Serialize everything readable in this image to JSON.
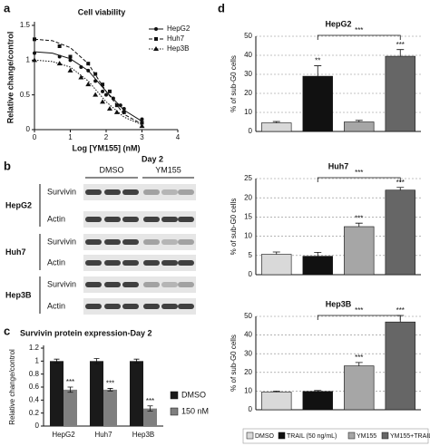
{
  "panel_labels": [
    "a",
    "b",
    "c",
    "d"
  ],
  "chart_data": [
    {
      "type": "scatter",
      "title": "Cell viability",
      "x_label": "Log [YM155] (nM)",
      "y_label": "Relative change/control",
      "xlim": [
        0,
        4
      ],
      "xticks": [
        0,
        1,
        2,
        3,
        4
      ],
      "ylim": [
        0,
        1.5
      ],
      "yticks": [
        0,
        0.5,
        1,
        1.5
      ],
      "series": [
        {
          "name": "HepG2",
          "color": "#111111",
          "marker": "circle",
          "line_style": "solid",
          "x": [
            0,
            0.7,
            1,
            1.3,
            1.5,
            1.7,
            1.9,
            2.0,
            2.2,
            2.4,
            2.5,
            3
          ],
          "values": [
            1.1,
            1.05,
            1.0,
            0.9,
            0.85,
            0.7,
            0.55,
            0.5,
            0.45,
            0.35,
            0.3,
            0.15
          ],
          "fit": {
            "x": [
              0,
              0.5,
              1,
              1.5,
              2,
              2.5,
              3
            ],
            "values": [
              1.12,
              1.1,
              1.02,
              0.85,
              0.55,
              0.28,
              0.12
            ]
          }
        },
        {
          "name": "Huh7",
          "color": "#111111",
          "marker": "square",
          "line_style": "dashed",
          "x": [
            0,
            0.7,
            1,
            1.5,
            1.7,
            1.9,
            2.1,
            2.3,
            2.5,
            3
          ],
          "values": [
            1.3,
            1.2,
            1.05,
            0.95,
            0.8,
            0.65,
            0.55,
            0.35,
            0.25,
            0.1
          ],
          "fit": {
            "x": [
              0,
              0.5,
              1,
              1.5,
              2,
              2.5,
              3
            ],
            "values": [
              1.3,
              1.28,
              1.18,
              0.95,
              0.55,
              0.22,
              0.08
            ]
          }
        },
        {
          "name": "Hep3B",
          "color": "#111111",
          "marker": "triangle",
          "line_style": "dotted",
          "x": [
            0,
            0.7,
            1,
            1.3,
            1.5,
            1.7,
            1.9,
            2.1,
            2.3,
            3
          ],
          "values": [
            1.0,
            0.95,
            0.85,
            0.75,
            0.65,
            0.5,
            0.4,
            0.3,
            0.25,
            0.05
          ],
          "fit": {
            "x": [
              0,
              0.5,
              1,
              1.5,
              2,
              2.5,
              3
            ],
            "values": [
              1.0,
              0.98,
              0.9,
              0.7,
              0.4,
              0.18,
              0.07
            ]
          }
        }
      ]
    },
    {
      "type": "bar",
      "title": "Survivin protein expression-Day 2",
      "y_label": "Relative change/control",
      "categories": [
        "HepG2",
        "Huh7",
        "Hep3B"
      ],
      "ylim": [
        0,
        1.2
      ],
      "yticks": [
        0,
        0.2,
        0.4,
        0.6,
        0.8,
        1,
        1.2
      ],
      "series": [
        {
          "name": "DMSO",
          "color": "#1a1a1a",
          "values": [
            1,
            1,
            1
          ],
          "errors": [
            0.03,
            0.04,
            0.03
          ]
        },
        {
          "name": "150 nM",
          "color": "#7f7f7f",
          "values": [
            0.56,
            0.56,
            0.27
          ],
          "errors": [
            0.04,
            0.02,
            0.04
          ],
          "marks": [
            "***",
            "***",
            "***"
          ]
        }
      ]
    },
    {
      "type": "bar",
      "y_label": "% of sub-G0 cells",
      "series": [
        {
          "name": "DMSO",
          "color": "#d9d9d9"
        },
        {
          "name": "TRAIL (50 ng/mL)",
          "color": "#111111"
        },
        {
          "name": "YM155",
          "color": "#a6a6a6"
        },
        {
          "name": "YM155+TRAIL",
          "color": "#666666"
        }
      ],
      "panels": [
        {
          "title": "HepG2",
          "ylim": [
            0,
            50
          ],
          "yticks": [
            0,
            10,
            20,
            30,
            40,
            50
          ],
          "values": [
            4.5,
            29,
            5,
            39.5
          ],
          "errors": [
            0.7,
            5.5,
            0.8,
            3.5
          ],
          "marks": [
            null,
            "**",
            null,
            "***"
          ],
          "bracket": {
            "from": 1,
            "to": 3,
            "label": "***"
          }
        },
        {
          "title": "Huh7",
          "ylim": [
            0,
            25
          ],
          "yticks": [
            0,
            5,
            10,
            15,
            20,
            25
          ],
          "values": [
            5.3,
            4.8,
            12.5,
            22
          ],
          "errors": [
            0.6,
            1.0,
            0.9,
            0.7
          ],
          "marks": [
            null,
            null,
            "***",
            "***"
          ],
          "bracket": {
            "from": 1,
            "to": 3,
            "label": "***"
          }
        },
        {
          "title": "Hep3B",
          "ylim": [
            0,
            50
          ],
          "yticks": [
            0,
            10,
            20,
            30,
            40,
            50
          ],
          "values": [
            9.5,
            9.8,
            23.5,
            47
          ],
          "errors": [
            0.5,
            0.5,
            1.8,
            3.5
          ],
          "marks": [
            null,
            null,
            "***",
            "***"
          ],
          "bracket": {
            "from": 1,
            "to": 3,
            "label": "***"
          }
        }
      ]
    }
  ],
  "blot": {
    "title": "Day 2",
    "conditions": [
      "DMSO",
      "YM155"
    ],
    "groups": [
      {
        "name": "HepG2",
        "rows": [
          "Survivin",
          "Actin"
        ]
      },
      {
        "name": "Huh7",
        "rows": [
          "Survivin",
          "Actin"
        ]
      },
      {
        "name": "Hep3B",
        "rows": [
          "Survivin",
          "Actin"
        ]
      }
    ]
  }
}
